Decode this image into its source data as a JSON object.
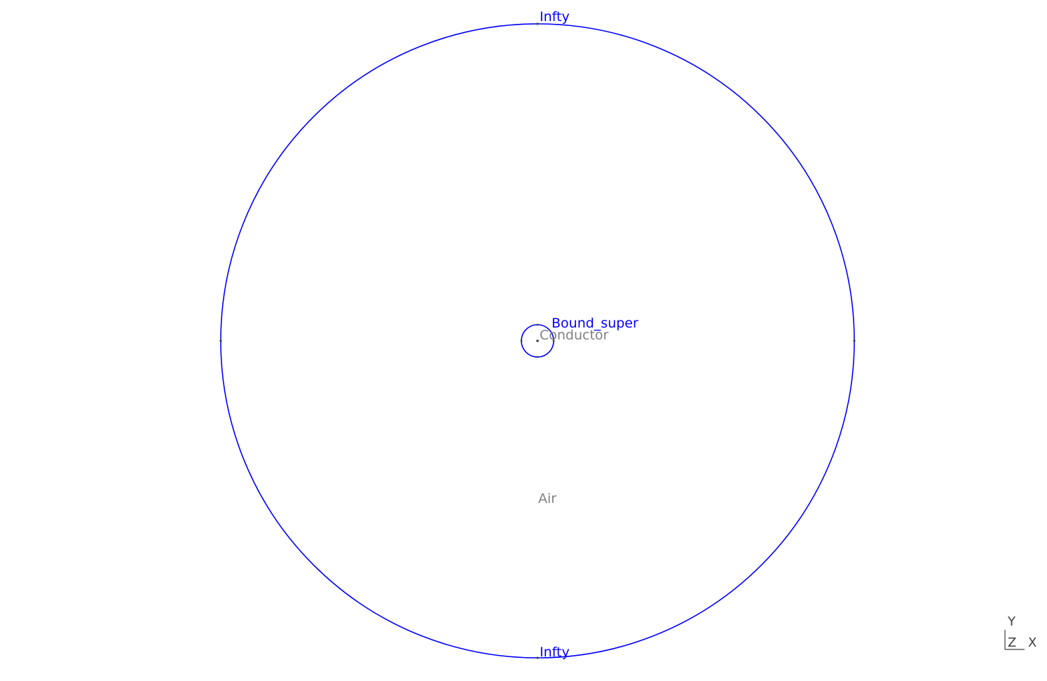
{
  "colors": {
    "boundary": "#0000ff",
    "region_label": "#808080",
    "point": "#404040",
    "axis": "#404040"
  },
  "labels": {
    "outer_top": "Infty",
    "outer_bottom": "Infty",
    "inner_boundary": "Bound_super",
    "conductor_region": "Conductor",
    "air_region": "Air"
  },
  "axes": {
    "y": "Y",
    "z": "Z",
    "x": "X"
  }
}
